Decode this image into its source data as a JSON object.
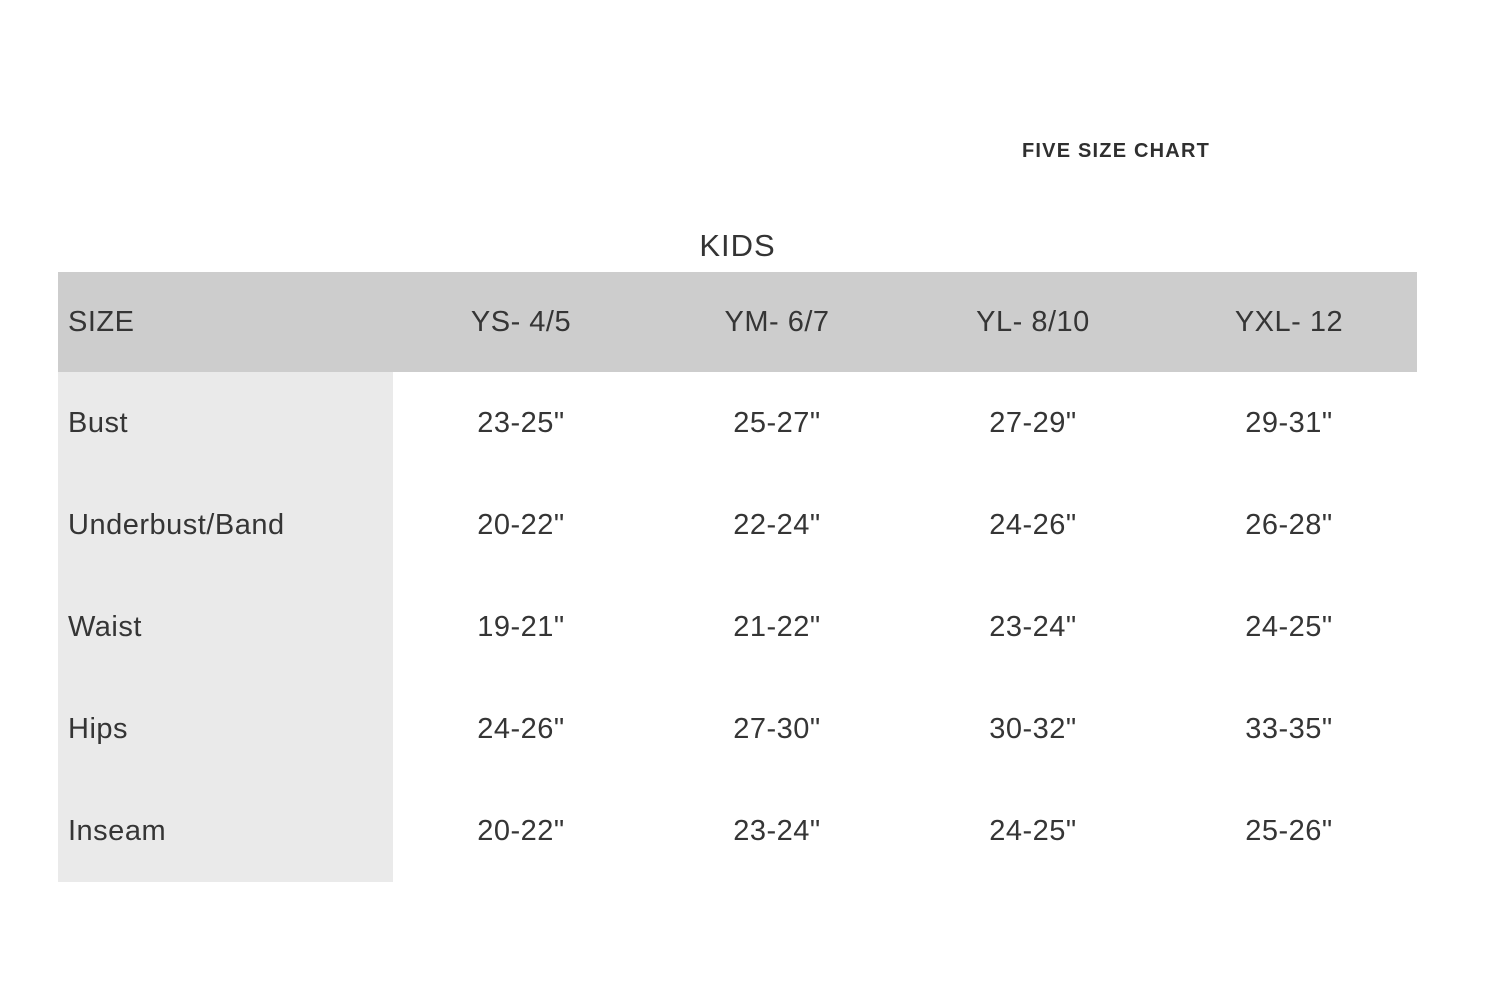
{
  "page": {
    "top_label": "FIVE SIZE CHART"
  },
  "colors": {
    "header_row_bg": "#cdcdcd",
    "label_column_bg": "#eaeaea",
    "text": "#353535",
    "page_bg": "#ffffff"
  },
  "chart_data": {
    "type": "table",
    "title": "KIDS",
    "columns": [
      "SIZE",
      "YS- 4/5",
      "YM- 6/7",
      "YL- 8/10",
      "YXL- 12"
    ],
    "rows": [
      {
        "label": "Bust",
        "values": [
          "23-25\"",
          "25-27\"",
          "27-29\"",
          "29-31\""
        ]
      },
      {
        "label": "Underbust/Band",
        "values": [
          "20-22\"",
          "22-24\"",
          "24-26\"",
          "26-28\""
        ]
      },
      {
        "label": "Waist",
        "values": [
          "19-21\"",
          "21-22\"",
          "23-24\"",
          "24-25\""
        ]
      },
      {
        "label": "Hips",
        "values": [
          "24-26\"",
          "27-30\"",
          "30-32\"",
          "33-35\""
        ]
      },
      {
        "label": "Inseam",
        "values": [
          "20-22\"",
          "23-24\"",
          "24-25\"",
          "25-26\""
        ]
      }
    ]
  }
}
